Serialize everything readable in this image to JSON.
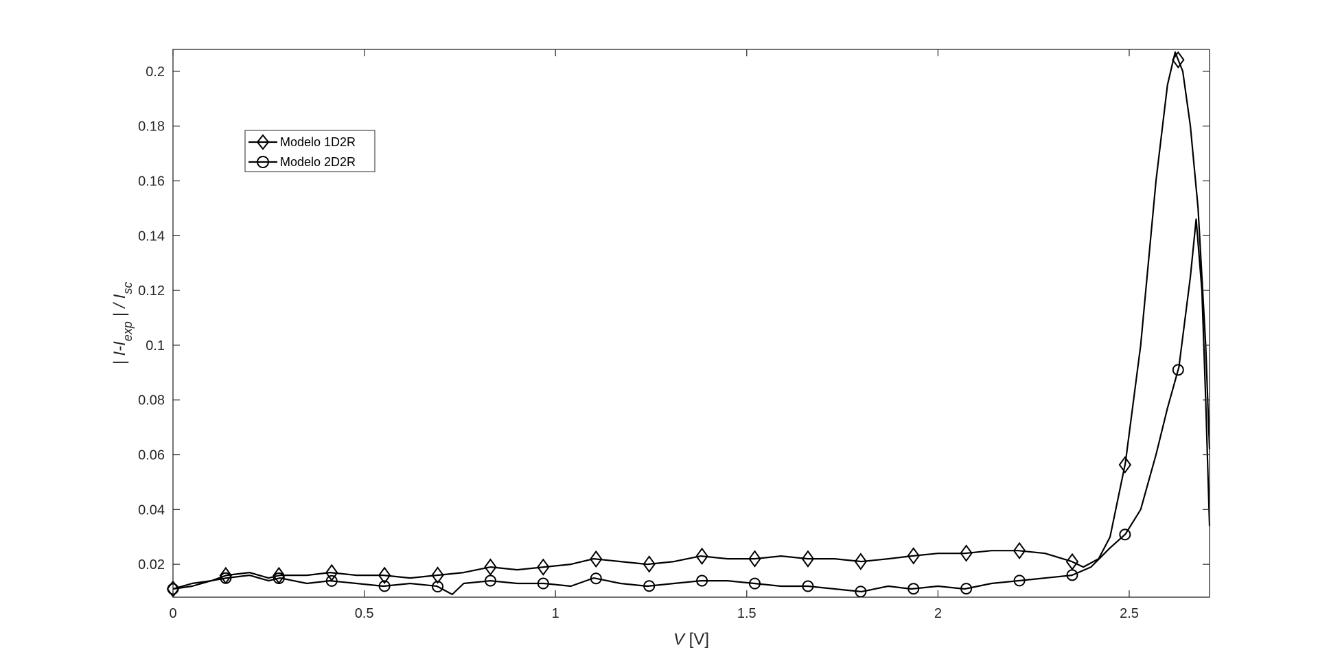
{
  "chart_data": {
    "type": "line",
    "xlabel": {
      "var": "V",
      "unit": " [V]"
    },
    "ylabel": {
      "part1": "| I-I",
      "sub1": "exp",
      "part2": " | / I",
      "sub2": "sc"
    },
    "xlim": [
      0,
      2.71
    ],
    "ylim": [
      0.008,
      0.208
    ],
    "xticks": [
      0,
      0.5,
      1,
      1.5,
      2,
      2.5
    ],
    "xtick_labels": [
      "0",
      "0.5",
      "1",
      "1.5",
      "2",
      "2.5"
    ],
    "yticks": [
      0.02,
      0.04,
      0.06,
      0.08,
      0.1,
      0.12,
      0.14,
      0.16,
      0.18,
      0.2
    ],
    "ytick_labels": [
      "0.02",
      "0.04",
      "0.06",
      "0.08",
      "0.1",
      "0.12",
      "0.14",
      "0.16",
      "0.18",
      "0.2"
    ],
    "grid": false,
    "legend_position": "top-left",
    "series": [
      {
        "name": "Modelo 1D2R",
        "marker": "diamond",
        "color": "#000000",
        "x": [
          0,
          0.05,
          0.1,
          0.14,
          0.2,
          0.25,
          0.28,
          0.35,
          0.41,
          0.48,
          0.55,
          0.62,
          0.69,
          0.76,
          0.83,
          0.9,
          0.97,
          1.04,
          1.1,
          1.17,
          1.24,
          1.31,
          1.38,
          1.45,
          1.52,
          1.59,
          1.66,
          1.73,
          1.8,
          1.87,
          1.93,
          2.0,
          2.07,
          2.14,
          2.21,
          2.28,
          2.35,
          2.38,
          2.42,
          2.45,
          2.49,
          2.53,
          2.57,
          2.6,
          2.62,
          2.64,
          2.66,
          2.68,
          2.7,
          2.71
        ],
        "y": [
          0.011,
          0.013,
          0.014,
          0.016,
          0.017,
          0.015,
          0.016,
          0.016,
          0.017,
          0.016,
          0.016,
          0.015,
          0.016,
          0.017,
          0.019,
          0.018,
          0.019,
          0.02,
          0.022,
          0.021,
          0.02,
          0.021,
          0.023,
          0.022,
          0.022,
          0.023,
          0.022,
          0.022,
          0.021,
          0.022,
          0.023,
          0.024,
          0.024,
          0.025,
          0.025,
          0.024,
          0.021,
          0.019,
          0.022,
          0.03,
          0.057,
          0.1,
          0.16,
          0.195,
          0.207,
          0.2,
          0.18,
          0.15,
          0.1,
          0.062
        ]
      },
      {
        "name": "Modelo 2D2R",
        "marker": "circle",
        "color": "#000000",
        "x": [
          0,
          0.05,
          0.1,
          0.14,
          0.2,
          0.25,
          0.28,
          0.35,
          0.41,
          0.48,
          0.55,
          0.62,
          0.69,
          0.73,
          0.76,
          0.83,
          0.9,
          0.97,
          1.04,
          1.1,
          1.17,
          1.24,
          1.31,
          1.38,
          1.45,
          1.52,
          1.59,
          1.66,
          1.73,
          1.8,
          1.87,
          1.93,
          2.0,
          2.07,
          2.14,
          2.21,
          2.28,
          2.35,
          2.4,
          2.45,
          2.49,
          2.53,
          2.57,
          2.6,
          2.63,
          2.66,
          2.675,
          2.69,
          2.7,
          2.71
        ],
        "y": [
          0.011,
          0.012,
          0.014,
          0.015,
          0.016,
          0.014,
          0.015,
          0.013,
          0.014,
          0.013,
          0.012,
          0.013,
          0.012,
          0.009,
          0.013,
          0.014,
          0.013,
          0.013,
          0.012,
          0.015,
          0.013,
          0.012,
          0.013,
          0.014,
          0.014,
          0.013,
          0.012,
          0.012,
          0.011,
          0.01,
          0.012,
          0.011,
          0.012,
          0.011,
          0.013,
          0.014,
          0.015,
          0.016,
          0.019,
          0.026,
          0.031,
          0.04,
          0.06,
          0.077,
          0.092,
          0.125,
          0.146,
          0.12,
          0.08,
          0.034
        ]
      }
    ],
    "marker_x": [
      0,
      0.138,
      0.277,
      0.415,
      0.553,
      0.692,
      0.83,
      0.968,
      1.106,
      1.245,
      1.383,
      1.521,
      1.66,
      1.798,
      1.936,
      2.074,
      2.213,
      2.351,
      2.489,
      2.628
    ]
  }
}
